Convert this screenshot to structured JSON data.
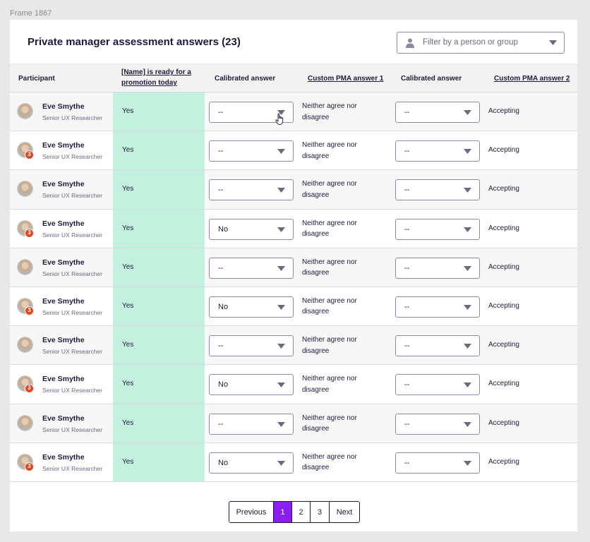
{
  "frame_label": "Frame 1867",
  "title": "Private manager assessment answers (23)",
  "filter": {
    "placeholder": "Filter by a person or group",
    "icon": "person-icon"
  },
  "columns": [
    {
      "label": "Participant",
      "link": false
    },
    {
      "label": "[Name] is ready for a promotion today",
      "link": true
    },
    {
      "label": "Calibrated answer",
      "link": false
    },
    {
      "label": "Custom PMA answer 1",
      "link": true
    },
    {
      "label": "Calibrated answer",
      "link": false
    },
    {
      "label": "Custom PMA answer 2",
      "link": true
    }
  ],
  "colors": {
    "accent": "#8a1ef0",
    "ready_bg": "#c4f0df",
    "badge": "#e8431f",
    "text": "#1c1b3a"
  },
  "rows": [
    {
      "name": "Eve Smythe",
      "role": "Senior UX Researcher",
      "badge": "",
      "ready": "Yes",
      "calibrated1": "--",
      "pma1": "Neither agree nor disagree",
      "calibrated2": "--",
      "pma2": "Accepting"
    },
    {
      "name": "Eve Smythe",
      "role": "Senior UX Researcher",
      "badge": "3",
      "ready": "Yes",
      "calibrated1": "--",
      "pma1": "Neither agree nor disagree",
      "calibrated2": "--",
      "pma2": "Accepting"
    },
    {
      "name": "Eve Smythe",
      "role": "Senior UX Researcher",
      "badge": "",
      "ready": "Yes",
      "calibrated1": "--",
      "pma1": "Neither agree nor disagree",
      "calibrated2": "--",
      "pma2": "Accepting"
    },
    {
      "name": "Eve Smythe",
      "role": "Senior UX Researcher",
      "badge": "3",
      "ready": "Yes",
      "calibrated1": "No",
      "pma1": "Neither agree nor disagree",
      "calibrated2": "--",
      "pma2": "Accepting"
    },
    {
      "name": "Eve Smythe",
      "role": "Senior UX Researcher",
      "badge": "",
      "ready": "Yes",
      "calibrated1": "--",
      "pma1": "Neither agree nor disagree",
      "calibrated2": "--",
      "pma2": "Accepting"
    },
    {
      "name": "Eve Smythe",
      "role": "Senior UX Researcher",
      "badge": "3",
      "ready": "Yes",
      "calibrated1": "No",
      "pma1": "Neither agree nor disagree",
      "calibrated2": "--",
      "pma2": "Accepting"
    },
    {
      "name": "Eve Smythe",
      "role": "Senior UX Researcher",
      "badge": "",
      "ready": "Yes",
      "calibrated1": "--",
      "pma1": "Neither agree nor disagree",
      "calibrated2": "--",
      "pma2": "Accepting"
    },
    {
      "name": "Eve Smythe",
      "role": "Senior UX Researcher",
      "badge": "3",
      "ready": "Yes",
      "calibrated1": "No",
      "pma1": "Neither agree nor disagree",
      "calibrated2": "--",
      "pma2": "Accepting"
    },
    {
      "name": "Eve Smythe",
      "role": "Senior UX Researcher",
      "badge": "",
      "ready": "Yes",
      "calibrated1": "--",
      "pma1": "Neither agree nor disagree",
      "calibrated2": "--",
      "pma2": "Accepting"
    },
    {
      "name": "Eve Smythe",
      "role": "Senior UX Researcher",
      "badge": "3",
      "ready": "Yes",
      "calibrated1": "No",
      "pma1": "Neither agree nor disagree",
      "calibrated2": "--",
      "pma2": "Accepting"
    }
  ],
  "pagination": {
    "previous": "Previous",
    "pages": [
      "1",
      "2",
      "3"
    ],
    "current": "1",
    "next": "Next"
  }
}
